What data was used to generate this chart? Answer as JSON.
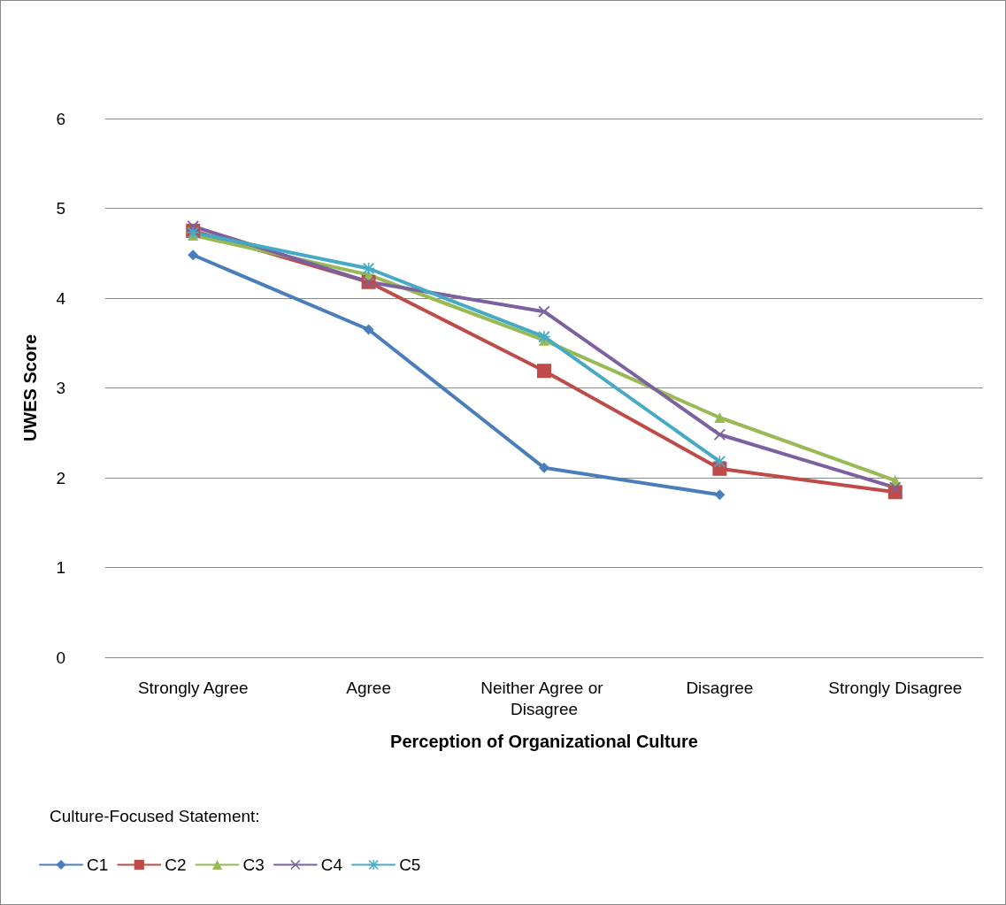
{
  "chart_data": {
    "type": "line",
    "xlabel": "Perception of Organizational Culture",
    "ylabel": "UWES Score",
    "legend_title": "Culture-Focused Statement:",
    "categories": [
      "Strongly Agree",
      "Agree",
      "Neither Agree or Disagree",
      "Disagree",
      "Strongly Disagree"
    ],
    "ylim": [
      0,
      6
    ],
    "yticks": [
      0,
      1,
      2,
      3,
      4,
      5,
      6
    ],
    "grid": "y",
    "legend": "bottom left",
    "series": [
      {
        "name": "C1",
        "color": "#4a7ebb",
        "marker": "diamond",
        "values": [
          4.48,
          3.65,
          2.11,
          1.81,
          null
        ]
      },
      {
        "name": "C2",
        "color": "#be4b48",
        "marker": "square",
        "values": [
          4.75,
          4.18,
          3.19,
          2.1,
          1.84
        ]
      },
      {
        "name": "C3",
        "color": "#98b954",
        "marker": "triangle",
        "values": [
          4.7,
          4.26,
          3.53,
          2.67,
          1.97
        ]
      },
      {
        "name": "C4",
        "color": "#7d60a0",
        "marker": "cross",
        "values": [
          4.8,
          4.18,
          3.85,
          2.48,
          1.89
        ]
      },
      {
        "name": "C5",
        "color": "#46aac5",
        "marker": "star",
        "values": [
          4.73,
          4.33,
          3.57,
          2.18,
          null
        ]
      }
    ]
  }
}
